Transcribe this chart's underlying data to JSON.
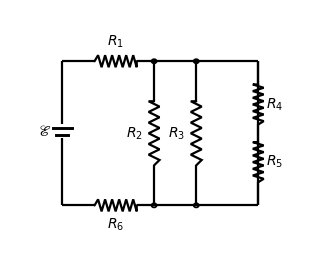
{
  "bg_color": "#ffffff",
  "line_color": "#000000",
  "line_width": 1.6,
  "fig_width": 3.2,
  "fig_height": 2.6,
  "dpi": 100,
  "xl": 0.09,
  "xr": 0.88,
  "yt": 0.85,
  "yb": 0.13,
  "xm1": 0.46,
  "xm2": 0.63,
  "ybat": 0.5,
  "label_fontsize": 10
}
